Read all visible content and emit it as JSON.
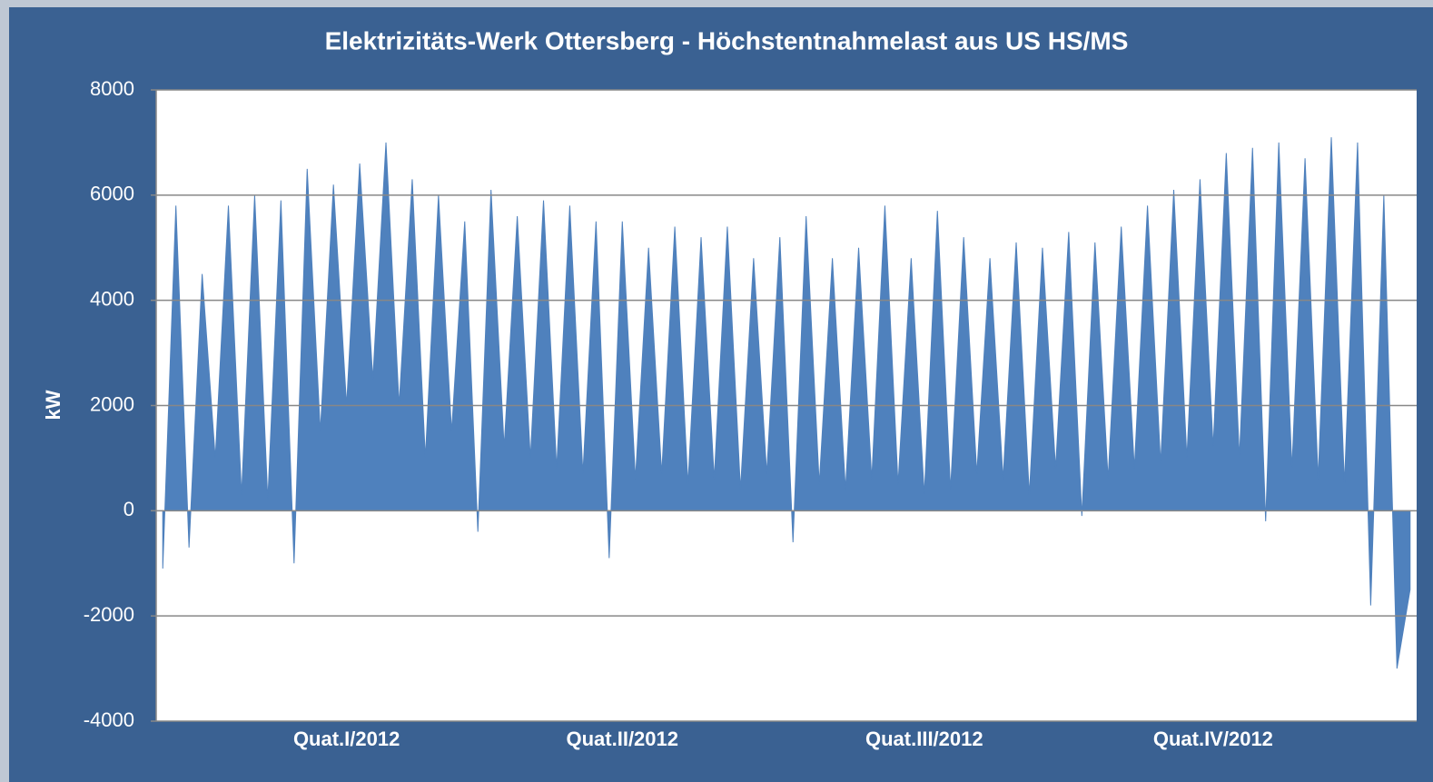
{
  "chart_data": {
    "type": "area",
    "title": "Elektrizitäts-Werk Ottersberg - Höchstentnahmelast aus US HS/MS",
    "y_label": "kW",
    "categories": [
      null,
      null,
      null,
      null,
      null,
      null,
      null,
      null,
      null,
      null,
      null,
      null,
      null,
      null,
      "Quat.I/2012",
      null,
      null,
      null,
      null,
      null,
      null,
      null,
      null,
      null,
      null,
      null,
      null,
      null,
      null,
      null,
      null,
      null,
      null,
      null,
      null,
      "Quat.II/2012",
      null,
      null,
      null,
      null,
      null,
      null,
      null,
      null,
      null,
      null,
      null,
      null,
      null,
      null,
      null,
      null,
      null,
      null,
      null,
      null,
      null,
      null,
      "Quat.III/2012",
      null,
      null,
      null,
      null,
      null,
      null,
      null,
      null,
      null,
      null,
      null,
      null,
      null,
      null,
      null,
      null,
      null,
      null,
      null,
      null,
      null,
      "Quat.IV/2012",
      null,
      null,
      null,
      null,
      null,
      null,
      null,
      null,
      null,
      null,
      null,
      null,
      null,
      null,
      null
    ],
    "values": [
      -1100,
      5800,
      -700,
      4500,
      1000,
      5800,
      300,
      6000,
      200,
      5900,
      -1000,
      6500,
      1500,
      6200,
      2000,
      6600,
      2500,
      7000,
      2000,
      6300,
      1000,
      6000,
      1500,
      5500,
      -400,
      6100,
      1200,
      5600,
      1000,
      5900,
      800,
      5800,
      700,
      5500,
      -900,
      5500,
      600,
      5000,
      700,
      5400,
      500,
      5200,
      600,
      5400,
      400,
      4800,
      700,
      5200,
      -600,
      5600,
      500,
      4800,
      400,
      5000,
      600,
      5800,
      500,
      4800,
      300,
      5700,
      400,
      5200,
      700,
      4800,
      600,
      5100,
      300,
      5000,
      800,
      5300,
      -100,
      5100,
      600,
      5400,
      800,
      5800,
      900,
      6100,
      1000,
      6300,
      1200,
      6800,
      1000,
      6900,
      -200,
      7000,
      800,
      6700,
      600,
      7100,
      500,
      7000,
      -1800,
      6000,
      -3000,
      -1500
    ],
    "color": "#4f81bd",
    "ylim": [
      -4000,
      8000
    ],
    "yticks": [
      -4000,
      -2000,
      0,
      2000,
      4000,
      6000,
      8000
    ],
    "grid": true
  }
}
